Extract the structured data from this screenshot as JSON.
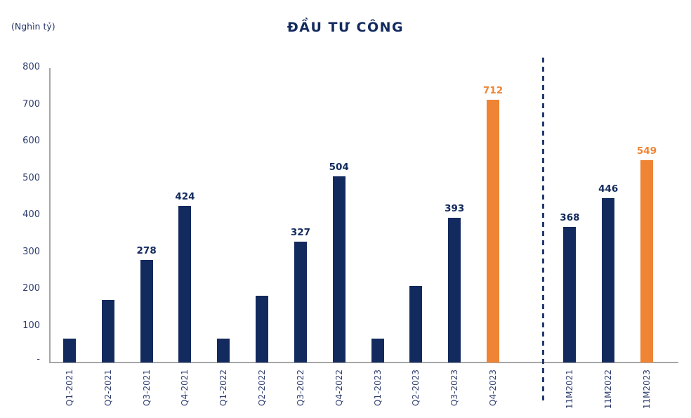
{
  "chart_data": {
    "type": "bar",
    "title": "ĐẦU TƯ CÔNG",
    "unit_label": "(Nghìn tỷ)",
    "xlabel": "",
    "ylabel": "(Nghìn tỷ)",
    "ylim": [
      0,
      800
    ],
    "ytick_interval": 100,
    "yticks": [
      800,
      700,
      600,
      500,
      400,
      300,
      200,
      100
    ],
    "zero_tick_label": "-",
    "grid": false,
    "legend": false,
    "separator": {
      "style": "vertical-dashed-line",
      "between": [
        "Q4-2023",
        "11M2021"
      ],
      "meaning": "separates quarterly bars from 11-month cumulative bars"
    },
    "colors": {
      "navy": "#132A5E",
      "orange": "#EE8434",
      "axis": "#A6A6A6"
    },
    "bars": [
      {
        "category": "Q1-2021",
        "value": 65,
        "data_label": "",
        "color": "navy"
      },
      {
        "category": "Q2-2021",
        "value": 170,
        "data_label": "",
        "color": "navy"
      },
      {
        "category": "Q3-2021",
        "value": 278,
        "data_label": "278",
        "color": "navy"
      },
      {
        "category": "Q4-2021",
        "value": 424,
        "data_label": "424",
        "color": "navy"
      },
      {
        "category": "Q1-2022",
        "value": 65,
        "data_label": "",
        "color": "navy"
      },
      {
        "category": "Q2-2022",
        "value": 180,
        "data_label": "",
        "color": "navy"
      },
      {
        "category": "Q3-2022",
        "value": 327,
        "data_label": "327",
        "color": "navy"
      },
      {
        "category": "Q4-2022",
        "value": 504,
        "data_label": "504",
        "color": "navy"
      },
      {
        "category": "Q1-2023",
        "value": 65,
        "data_label": "",
        "color": "navy"
      },
      {
        "category": "Q2-2023",
        "value": 207,
        "data_label": "",
        "color": "navy"
      },
      {
        "category": "Q3-2023",
        "value": 393,
        "data_label": "393",
        "color": "navy"
      },
      {
        "category": "Q4-2023",
        "value": 712,
        "data_label": "712",
        "color": "orange"
      },
      {
        "category": "11M2021",
        "value": 368,
        "data_label": "368",
        "color": "navy"
      },
      {
        "category": "11M2022",
        "value": 446,
        "data_label": "446",
        "color": "navy"
      },
      {
        "category": "11M2023",
        "value": 549,
        "data_label": "549",
        "color": "orange"
      }
    ]
  }
}
